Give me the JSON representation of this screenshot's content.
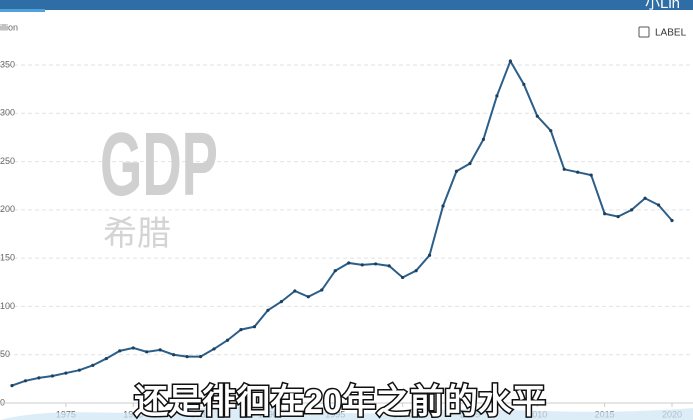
{
  "brand": "小Lin",
  "label_toggle": "LABEL",
  "watermark": {
    "title": "GDP",
    "subtitle": "希腊"
  },
  "caption": "还是徘徊在20年之前的水平",
  "chart_data": {
    "type": "line",
    "y_unit": "illion",
    "x": [
      1971,
      1972,
      1973,
      1974,
      1975,
      1976,
      1977,
      1978,
      1979,
      1980,
      1981,
      1982,
      1983,
      1984,
      1985,
      1986,
      1987,
      1988,
      1989,
      1990,
      1991,
      1992,
      1993,
      1994,
      1995,
      1996,
      1997,
      1998,
      1999,
      2000,
      2001,
      2002,
      2003,
      2004,
      2005,
      2006,
      2007,
      2008,
      2009,
      2010,
      2011,
      2012,
      2013,
      2014,
      2015,
      2016,
      2017,
      2018,
      2019,
      2020
    ],
    "series": [
      {
        "color": "#2b5f8a",
        "values": [
          18,
          23,
          26,
          28,
          31,
          34,
          39,
          46,
          54,
          57,
          53,
          55,
          50,
          48,
          48,
          56,
          65,
          76,
          79,
          96,
          105,
          116,
          110,
          117,
          137,
          145,
          143,
          144,
          142,
          130,
          137,
          153,
          204,
          240,
          248,
          273,
          318,
          354,
          330,
          297,
          282,
          242,
          239,
          236,
          196,
          193,
          200,
          212,
          205,
          189
        ]
      }
    ],
    "xlim": [
      1971,
      2020
    ],
    "xticks": [
      1975,
      1980,
      1985,
      1990,
      1995,
      2000,
      2005,
      2010,
      2015,
      2020
    ],
    "ylim": [
      0,
      350
    ],
    "yticks": [
      0,
      50,
      100,
      150,
      200,
      250,
      300,
      350
    ],
    "grid": true
  }
}
